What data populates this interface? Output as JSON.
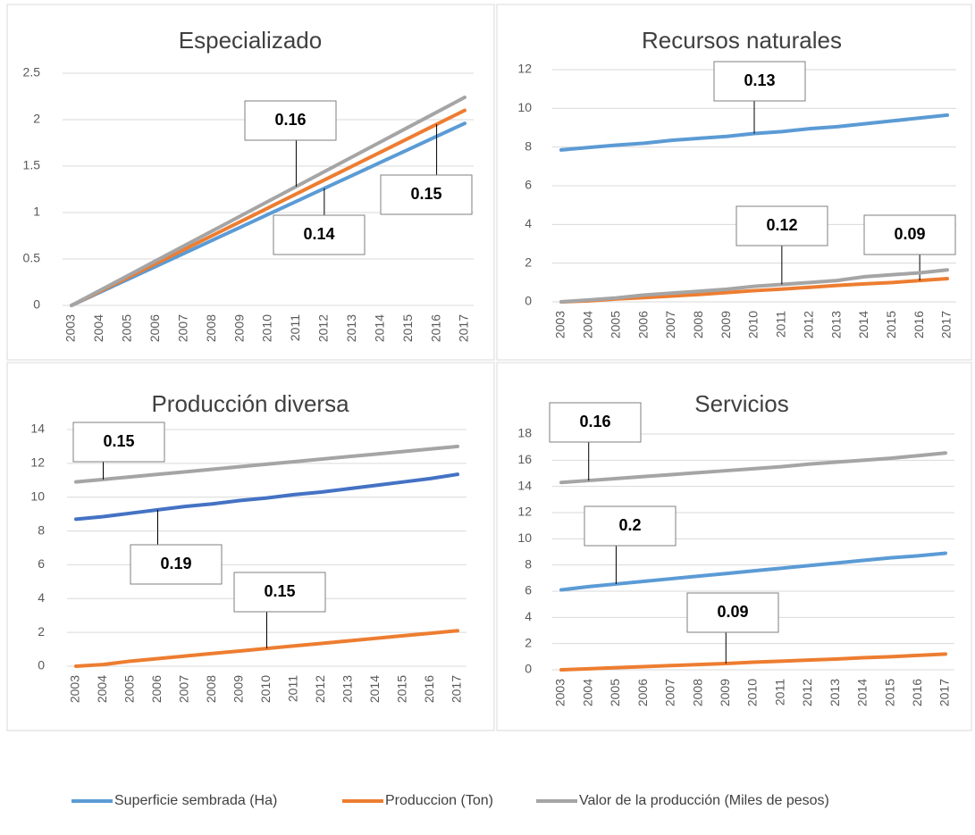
{
  "chart_data": [
    {
      "type": "line",
      "title": "Especializado",
      "categories": [
        "2003",
        "2004",
        "2005",
        "2006",
        "2007",
        "2008",
        "2009",
        "2010",
        "2011",
        "2012",
        "2013",
        "2014",
        "2015",
        "2016",
        "2017"
      ],
      "ylim": [
        0,
        2.5
      ],
      "yticks": [
        0,
        0.5,
        1,
        1.5,
        2,
        2.5
      ],
      "grid": true,
      "series": [
        {
          "name": "Superficie sembrada (Ha)",
          "color": "#5b9bd5",
          "annotation": "0.14",
          "values": [
            0,
            0.14,
            0.28,
            0.42,
            0.56,
            0.7,
            0.84,
            0.98,
            1.12,
            1.26,
            1.4,
            1.54,
            1.68,
            1.82,
            1.96
          ]
        },
        {
          "name": "Produccion (Ton)",
          "color": "#ed7d31",
          "annotation": "0.15",
          "values": [
            0,
            0.15,
            0.3,
            0.45,
            0.6,
            0.75,
            0.9,
            1.05,
            1.2,
            1.35,
            1.5,
            1.65,
            1.8,
            1.95,
            2.1
          ]
        },
        {
          "name": "Valor de la producción (Miles de pesos)",
          "color": "#a5a5a5",
          "annotation": "0.16",
          "values": [
            0,
            0.16,
            0.32,
            0.48,
            0.64,
            0.8,
            0.96,
            1.12,
            1.28,
            1.44,
            1.6,
            1.76,
            1.92,
            2.08,
            2.24
          ]
        }
      ]
    },
    {
      "type": "line",
      "title": "Recursos naturales",
      "categories": [
        "2003",
        "2004",
        "2005",
        "2006",
        "2007",
        "2008",
        "2009",
        "2010",
        "2011",
        "2012",
        "2013",
        "2014",
        "2015",
        "2016",
        "2017"
      ],
      "ylim": [
        0,
        12
      ],
      "yticks": [
        0,
        2,
        4,
        6,
        8,
        10,
        12
      ],
      "grid": true,
      "series": [
        {
          "name": "Superficie sembrada (Ha)",
          "color": "#5b9bd5",
          "annotation": "0.13",
          "values": [
            7.85,
            7.98,
            8.1,
            8.2,
            8.35,
            8.45,
            8.55,
            8.7,
            8.8,
            8.95,
            9.05,
            9.2,
            9.35,
            9.5,
            9.65
          ]
        },
        {
          "name": "Produccion (Ton)",
          "color": "#ed7d31",
          "annotation": "0.09",
          "values": [
            0,
            0.05,
            0.15,
            0.22,
            0.3,
            0.38,
            0.48,
            0.58,
            0.66,
            0.75,
            0.85,
            0.93,
            1.0,
            1.1,
            1.2
          ]
        },
        {
          "name": "Valor de la producción (Miles de pesos)",
          "color": "#a5a5a5",
          "annotation": "0.12",
          "values": [
            0,
            0.1,
            0.2,
            0.35,
            0.45,
            0.55,
            0.65,
            0.8,
            0.9,
            1.0,
            1.1,
            1.3,
            1.4,
            1.5,
            1.65
          ]
        }
      ]
    },
    {
      "type": "line",
      "title": "Producción diversa",
      "categories": [
        "2003",
        "2004",
        "2005",
        "2006",
        "2007",
        "2008",
        "2009",
        "2010",
        "2011",
        "2012",
        "2013",
        "2014",
        "2015",
        "2016",
        "2017"
      ],
      "ylim": [
        0,
        14
      ],
      "yticks": [
        0,
        2,
        4,
        6,
        8,
        10,
        12,
        14
      ],
      "grid": true,
      "series": [
        {
          "name": "Superficie sembrada (Ha)",
          "color": "#4472c4",
          "annotation": "0.19",
          "values": [
            8.7,
            8.85,
            9.05,
            9.25,
            9.45,
            9.6,
            9.8,
            9.95,
            10.15,
            10.3,
            10.5,
            10.7,
            10.9,
            11.1,
            11.35
          ]
        },
        {
          "name": "Produccion (Ton)",
          "color": "#ed7d31",
          "annotation": "0.15",
          "values": [
            0,
            0.1,
            0.3,
            0.45,
            0.6,
            0.75,
            0.9,
            1.05,
            1.2,
            1.35,
            1.5,
            1.65,
            1.8,
            1.95,
            2.1
          ]
        },
        {
          "name": "Valor de la producción (Miles de pesos)",
          "color": "#a5a5a5",
          "annotation": "0.15",
          "values": [
            10.9,
            11.05,
            11.2,
            11.35,
            11.5,
            11.65,
            11.8,
            11.95,
            12.1,
            12.25,
            12.4,
            12.55,
            12.7,
            12.85,
            13.0
          ]
        }
      ]
    },
    {
      "type": "line",
      "title": "Servicios",
      "categories": [
        "2003",
        "2004",
        "2005",
        "2006",
        "2007",
        "2008",
        "2009",
        "2010",
        "2011",
        "2012",
        "2013",
        "2014",
        "2015",
        "2016",
        "2017"
      ],
      "ylim": [
        0,
        18
      ],
      "yticks": [
        0,
        2,
        4,
        6,
        8,
        10,
        12,
        14,
        16,
        18
      ],
      "grid": true,
      "series": [
        {
          "name": "Superficie sembrada (Ha)",
          "color": "#5b9bd5",
          "annotation": "0.2",
          "values": [
            6.1,
            6.35,
            6.55,
            6.75,
            6.95,
            7.15,
            7.35,
            7.55,
            7.75,
            7.95,
            8.15,
            8.35,
            8.55,
            8.7,
            8.9
          ]
        },
        {
          "name": "Produccion (Ton)",
          "color": "#ed7d31",
          "annotation": "0.09",
          "values": [
            0,
            0.08,
            0.16,
            0.24,
            0.32,
            0.4,
            0.48,
            0.58,
            0.66,
            0.74,
            0.82,
            0.92,
            1.0,
            1.1,
            1.2
          ]
        },
        {
          "name": "Valor de la producción (Miles de pesos)",
          "color": "#a5a5a5",
          "annotation": "0.16",
          "values": [
            14.3,
            14.45,
            14.6,
            14.75,
            14.9,
            15.05,
            15.2,
            15.35,
            15.5,
            15.7,
            15.85,
            16.0,
            16.15,
            16.35,
            16.55
          ]
        }
      ]
    }
  ]
}
